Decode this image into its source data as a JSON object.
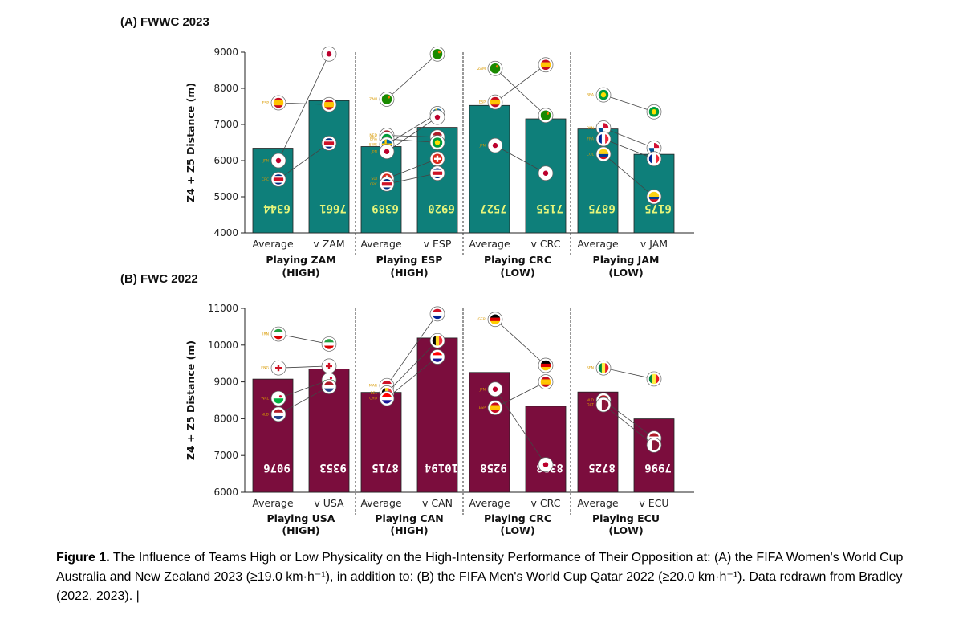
{
  "caption": {
    "bold": "Figure 1.",
    "text": "The Influence of Teams High or Low Physicality on the High-Intensity Performance of Their Opposition at: (A) the FIFA Women's World Cup Australia and New Zealand 2023 (≥19.0 km·h⁻¹), in addition to: (B) the FIFA Men's World Cup Qatar 2022 (≥20.0 km·h⁻¹). Data redrawn from Bradley (2022, 2023).  |"
  },
  "colors": {
    "panel_a_bar": "#0e7f7a",
    "panel_b_bar": "#7b0d3d",
    "panel_a_label": "#e6f57a",
    "panel_b_label": "#ffffff"
  },
  "chart_data": [
    {
      "type": "bar",
      "title": "(A) FWWC 2023",
      "ylabel": "Z4 + Z5 Distance (m)",
      "ylim": [
        4000,
        9000
      ],
      "yticks": [
        4000,
        5000,
        6000,
        7000,
        8000,
        9000
      ],
      "categories": [
        "Average",
        "v ZAM",
        "Average",
        "v ESP",
        "Average",
        "v CRC",
        "Average",
        "v JAM"
      ],
      "values": [
        6344,
        7661,
        6389,
        6920,
        7527,
        7155,
        6875,
        6175
      ],
      "bar_labels": [
        "6344",
        "7661",
        "6389",
        "6920",
        "7527",
        "7155",
        "6875",
        "6175"
      ],
      "groups": [
        {
          "line1": "Playing ZAM",
          "line2": "(HIGH)"
        },
        {
          "line1": "Playing ESP",
          "line2": "(HIGH)"
        },
        {
          "line1": "Playing CRC",
          "line2": "(LOW)"
        },
        {
          "line1": "Playing JAM",
          "line2": "(LOW)"
        }
      ],
      "teams": [
        {
          "group": 0,
          "code": "ESP",
          "avg": 7600,
          "vs": 7550
        },
        {
          "group": 0,
          "code": "JPN",
          "avg": 6000,
          "vs": 8950
        },
        {
          "group": 0,
          "code": "CRC",
          "avg": 5480,
          "vs": 6480
        },
        {
          "group": 1,
          "code": "ZAM",
          "avg": 7700,
          "vs": 8950
        },
        {
          "group": 1,
          "code": "NED",
          "avg": 6700,
          "vs": 6650
        },
        {
          "group": 1,
          "code": "BRA",
          "avg": 6600,
          "vs": 6500
        },
        {
          "group": 1,
          "code": "SWE",
          "avg": 6450,
          "vs": 7300
        },
        {
          "group": 1,
          "code": "JPN",
          "avg": 6250,
          "vs": 7200
        },
        {
          "group": 1,
          "code": "SUI",
          "avg": 5500,
          "vs": 6050
        },
        {
          "group": 1,
          "code": "CRC",
          "avg": 5350,
          "vs": 5650
        },
        {
          "group": 2,
          "code": "ZAM",
          "avg": 8550,
          "vs": 7250
        },
        {
          "group": 2,
          "code": "ESP",
          "avg": 7620,
          "vs": 8650
        },
        {
          "group": 2,
          "code": "JPN",
          "avg": 6420,
          "vs": 5650
        },
        {
          "group": 3,
          "code": "BRA",
          "avg": 7820,
          "vs": 7350
        },
        {
          "group": 3,
          "code": "PAN",
          "avg": 6900,
          "vs": 6350
        },
        {
          "group": 3,
          "code": "FRA",
          "avg": 6600,
          "vs": 6050
        },
        {
          "group": 3,
          "code": "COL",
          "avg": 6180,
          "vs": 5000
        }
      ]
    },
    {
      "type": "bar",
      "title": "(B) FWC 2022",
      "ylabel": "Z4 + Z5 Distance (m)",
      "ylim": [
        6000,
        11000
      ],
      "yticks": [
        6000,
        7000,
        8000,
        9000,
        10000,
        11000
      ],
      "categories": [
        "Average",
        "v USA",
        "Average",
        "v CAN",
        "Average",
        "v CRC",
        "Average",
        "v ECU"
      ],
      "values": [
        9076,
        9353,
        8715,
        10194,
        9258,
        8338,
        8725,
        7996
      ],
      "bar_labels": [
        "9076",
        "9353",
        "8715",
        "10194",
        "9258",
        "8338",
        "8725",
        "7996"
      ],
      "groups": [
        {
          "line1": "Playing USA",
          "line2": "(HIGH)"
        },
        {
          "line1": "Playing CAN",
          "line2": "(HIGH)"
        },
        {
          "line1": "Playing CRC",
          "line2": "(LOW)"
        },
        {
          "line1": "Playing ECU",
          "line2": "(LOW)"
        }
      ],
      "teams": [
        {
          "group": 0,
          "code": "IRN",
          "avg": 10300,
          "vs": 10030
        },
        {
          "group": 0,
          "code": "ENG",
          "avg": 9380,
          "vs": 9430
        },
        {
          "group": 0,
          "code": "WAL",
          "avg": 8550,
          "vs": 9050
        },
        {
          "group": 0,
          "code": "NLD",
          "avg": 8120,
          "vs": 8870
        },
        {
          "group": 1,
          "code": "MAR",
          "avg": 8900,
          "vs": 10850
        },
        {
          "group": 1,
          "code": "BEL",
          "avg": 8700,
          "vs": 10120
        },
        {
          "group": 1,
          "code": "CRO",
          "avg": 8550,
          "vs": 9680
        },
        {
          "group": 2,
          "code": "GER",
          "avg": 10700,
          "vs": 9450
        },
        {
          "group": 2,
          "code": "JPN",
          "avg": 8800,
          "vs": 6750
        },
        {
          "group": 2,
          "code": "ESP",
          "avg": 8300,
          "vs": 9000
        },
        {
          "group": 3,
          "code": "SEN",
          "avg": 9380,
          "vs": 9080
        },
        {
          "group": 3,
          "code": "NLD",
          "avg": 8500,
          "vs": 7470
        },
        {
          "group": 3,
          "code": "QAT",
          "avg": 8380,
          "vs": 7280
        }
      ]
    }
  ]
}
